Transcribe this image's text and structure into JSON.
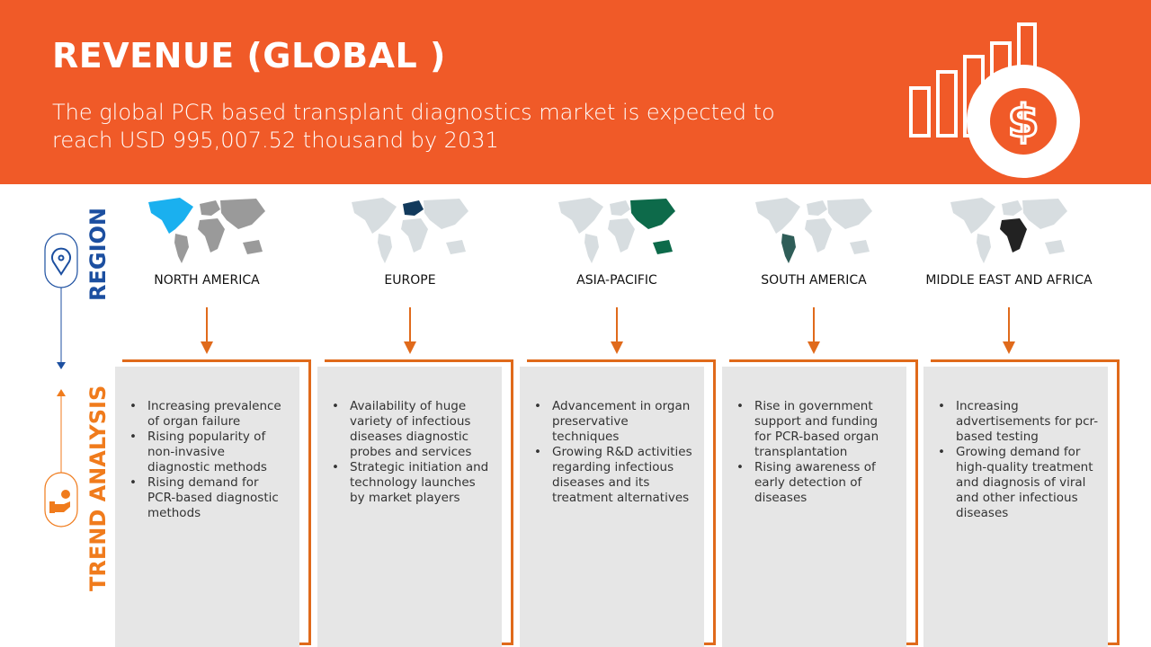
{
  "header": {
    "title": "REVENUE (GLOBAL )",
    "subtitle": "The global PCR based transplant diagnostics market is expected to reach USD 995,007.52 thousand by 2031",
    "icon": "revenue-chart-dollar-icon"
  },
  "side": {
    "region_label": "REGION",
    "trend_label": "TREND ANALYSIS",
    "region_color": "#1c4fa0",
    "trend_color": "#f07b1c"
  },
  "colors": {
    "brand": "#f05a28",
    "bracket": "#e06a1b",
    "card": "#e6e6e6"
  },
  "regions": [
    {
      "name": "NORTH AMERICA",
      "highlight": "#1ab0ef",
      "trends": [
        "Increasing prevalence of organ failure",
        "Rising popularity of non-invasive diagnostic methods",
        "Rising demand for PCR-based diagnostic methods"
      ]
    },
    {
      "name": "EUROPE",
      "highlight": "#123a5c",
      "trends": [
        "Availability of huge variety of infectious diseases diagnostic probes and services",
        "Strategic initiation and technology launches by market players"
      ]
    },
    {
      "name": "ASIA-PACIFIC",
      "highlight": "#0d6a4a",
      "trends": [
        "Advancement in organ preservative techniques",
        "Growing R&D activities regarding infectious diseases and its treatment alternatives"
      ]
    },
    {
      "name": "SOUTH AMERICA",
      "highlight": "#2f5d58",
      "trends": [
        "Rise in government support and funding for PCR-based organ transplantation",
        "Rising awareness of early detection of diseases"
      ]
    },
    {
      "name": "MIDDLE EAST AND AFRICA",
      "highlight": "#222222",
      "trends": [
        "Increasing advertisements for pcr-based testing",
        "Growing demand for high-quality treatment and diagnosis of viral and other infectious diseases"
      ]
    }
  ]
}
